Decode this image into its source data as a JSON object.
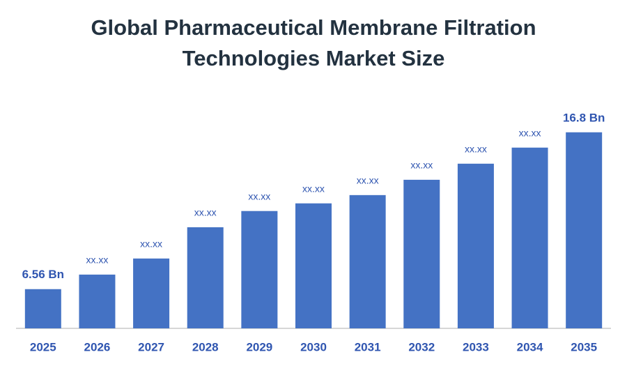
{
  "chart_data": {
    "type": "bar",
    "title": [
      "Global Pharmaceutical Membrane Filtration",
      "Technologies Market Size"
    ],
    "categories": [
      "2025",
      "2026",
      "2027",
      "2028",
      "2029",
      "2030",
      "2031",
      "2032",
      "2033",
      "2034",
      "2035"
    ],
    "values": [
      6.56,
      7.51,
      8.56,
      10.6,
      11.66,
      12.16,
      12.7,
      13.7,
      14.75,
      15.8,
      16.8
    ],
    "value_labels": [
      "6.56 Bn",
      "xx.xx",
      "xx.xx",
      "xx.xx",
      "xx.xx",
      "xx.xx",
      "xx.xx",
      "xx.xx",
      "xx.xx",
      "xx.xx",
      "16.8 Bn"
    ],
    "color": "#4472c4",
    "ylim": [
      4,
      18
    ]
  }
}
